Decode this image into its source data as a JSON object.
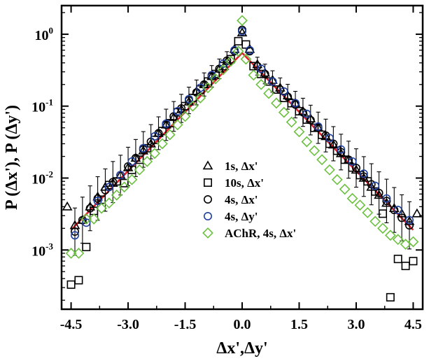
{
  "chart_data": {
    "type": "scatter",
    "x_axis": {
      "label": "Δx',Δy'",
      "range": [
        -4.75,
        4.75
      ],
      "ticks": [
        -4.5,
        -3.0,
        -1.5,
        0.0,
        1.5,
        3.0,
        4.5
      ],
      "tick_labels": [
        "-4.5",
        "-3.0",
        "-1.5",
        "0.0",
        "1.5",
        "3.0",
        "4.5"
      ]
    },
    "y_axis": {
      "label": "P (Δx'), P (Δy')",
      "scale": "log",
      "range": [
        0.00015,
        2.5
      ],
      "ticks": [
        0.001,
        0.01,
        0.1,
        1
      ],
      "tick_labels": [
        {
          "base": "10",
          "exp": "-3"
        },
        {
          "base": "10",
          "exp": "-2"
        },
        {
          "base": "10",
          "exp": "-1"
        },
        {
          "base": "10",
          "exp": "0"
        }
      ]
    },
    "legend": {
      "placement": "right-center",
      "entries": [
        {
          "label": "1s, Δx'",
          "marker": "triangle",
          "color": "#000000"
        },
        {
          "label": "10s, Δx'",
          "marker": "square",
          "color": "#000000"
        },
        {
          "label": "4s, Δx'",
          "marker": "circle",
          "color": "#000000"
        },
        {
          "label": "4s, Δy'",
          "marker": "circle",
          "color": "#2040a0"
        },
        {
          "label": "AChR, 4s, Δx'",
          "marker": "diamond",
          "color": "#6cc040"
        }
      ]
    },
    "fit_line": {
      "color": "#e0202a",
      "points": [
        [
          -4.5,
          0.0019
        ],
        [
          0.0,
          0.55
        ],
        [
          4.5,
          0.0019
        ]
      ]
    },
    "series": [
      {
        "name": "1s, Δx'",
        "marker": "triangle",
        "color": "#000000",
        "x": [
          -4.6,
          -4.4,
          -4.2,
          -4.0,
          -3.8,
          -3.6,
          -3.4,
          -3.2,
          -3.0,
          -2.8,
          -2.6,
          -2.4,
          -2.2,
          -2.0,
          -1.8,
          -1.6,
          -1.4,
          -1.2,
          -1.0,
          -0.8,
          -0.6,
          -0.4,
          -0.2,
          0.0,
          0.2,
          0.4,
          0.6,
          0.8,
          1.0,
          1.2,
          1.4,
          1.6,
          1.8,
          2.0,
          2.2,
          2.4,
          2.6,
          2.8,
          3.0,
          3.2,
          3.4,
          3.6,
          3.8,
          4.0,
          4.2,
          4.4,
          4.6
        ],
        "y": [
          0.004,
          0.0022,
          0.0026,
          0.004,
          0.0055,
          0.0075,
          0.0085,
          0.011,
          0.014,
          0.019,
          0.024,
          0.03,
          0.042,
          0.055,
          0.07,
          0.09,
          0.115,
          0.16,
          0.2,
          0.26,
          0.33,
          0.42,
          0.62,
          1.05,
          0.62,
          0.38,
          0.29,
          0.23,
          0.18,
          0.14,
          0.11,
          0.085,
          0.067,
          0.05,
          0.038,
          0.029,
          0.022,
          0.018,
          0.013,
          0.01,
          0.0075,
          0.0058,
          0.0045,
          0.0038,
          0.0032,
          0.0025,
          0.0032
        ]
      },
      {
        "name": "10s, Δx'",
        "marker": "square",
        "color": "#000000",
        "x": [
          -4.5,
          -4.3,
          -4.1,
          -3.9,
          -3.7,
          -3.5,
          -3.3,
          -3.1,
          -2.9,
          -2.7,
          -2.5,
          -2.3,
          -2.1,
          -1.9,
          -1.7,
          -1.5,
          -1.3,
          -1.1,
          -0.9,
          -0.7,
          -0.5,
          -0.3,
          -0.1,
          0.1,
          0.3,
          0.5,
          0.7,
          0.9,
          1.1,
          1.3,
          1.5,
          1.7,
          1.9,
          2.1,
          2.3,
          2.5,
          2.7,
          2.9,
          3.1,
          3.3,
          3.5,
          3.7,
          3.9,
          4.1,
          4.3,
          4.5
        ],
        "y": [
          0.00033,
          0.00038,
          0.0011,
          0.0035,
          0.005,
          0.008,
          0.009,
          0.0085,
          0.013,
          0.018,
          0.026,
          0.034,
          0.045,
          0.058,
          0.082,
          0.1,
          0.13,
          0.17,
          0.22,
          0.28,
          0.36,
          0.45,
          0.8,
          0.72,
          0.36,
          0.28,
          0.22,
          0.17,
          0.13,
          0.11,
          0.085,
          0.065,
          0.05,
          0.04,
          0.03,
          0.024,
          0.018,
          0.014,
          0.011,
          0.009,
          0.0065,
          0.0032,
          0.00022,
          0.00075,
          0.0006,
          0.0007
        ]
      },
      {
        "name": "4s, Δx'",
        "marker": "circle",
        "color": "#000000",
        "x": [
          -4.4,
          -4.2,
          -4.0,
          -3.8,
          -3.6,
          -3.4,
          -3.2,
          -3.0,
          -2.8,
          -2.6,
          -2.4,
          -2.2,
          -2.0,
          -1.8,
          -1.6,
          -1.4,
          -1.2,
          -1.0,
          -0.8,
          -0.6,
          -0.4,
          -0.2,
          0.0,
          0.2,
          0.4,
          0.6,
          0.8,
          1.0,
          1.2,
          1.4,
          1.6,
          1.8,
          2.0,
          2.2,
          2.4,
          2.6,
          2.8,
          3.0,
          3.2,
          3.4,
          3.6,
          3.8,
          4.0,
          4.2,
          4.4
        ],
        "y": [
          0.0018,
          0.0026,
          0.0038,
          0.0052,
          0.0068,
          0.0088,
          0.011,
          0.0145,
          0.019,
          0.025,
          0.032,
          0.042,
          0.055,
          0.072,
          0.093,
          0.12,
          0.155,
          0.2,
          0.26,
          0.33,
          0.43,
          0.58,
          1.15,
          0.58,
          0.36,
          0.28,
          0.22,
          0.17,
          0.135,
          0.105,
          0.082,
          0.064,
          0.05,
          0.039,
          0.03,
          0.023,
          0.018,
          0.0138,
          0.0105,
          0.0082,
          0.0062,
          0.0048,
          0.0036,
          0.0028,
          0.0022
        ]
      },
      {
        "name": "4s, Δy'",
        "marker": "circle",
        "color": "#2040a0",
        "x": [
          -4.4,
          -4.1,
          -3.8,
          -3.5,
          -3.2,
          -2.9,
          -2.6,
          -2.3,
          -2.0,
          -1.7,
          -1.4,
          -1.1,
          -0.8,
          -0.5,
          -0.2,
          0.0,
          0.2,
          0.5,
          0.8,
          1.1,
          1.4,
          1.7,
          2.0,
          2.3,
          2.6,
          2.9,
          3.2,
          3.5,
          3.8,
          4.1,
          4.4
        ],
        "y": [
          0.0016,
          0.0024,
          0.0048,
          0.0075,
          0.011,
          0.017,
          0.026,
          0.038,
          0.057,
          0.085,
          0.125,
          0.18,
          0.27,
          0.39,
          0.6,
          1.1,
          0.6,
          0.33,
          0.22,
          0.16,
          0.11,
          0.078,
          0.052,
          0.036,
          0.025,
          0.017,
          0.0115,
          0.0078,
          0.0052,
          0.0036,
          0.0026
        ]
      },
      {
        "name": "AChR, 4s, Δx'",
        "marker": "diamond",
        "color": "#6cc040",
        "x": [
          -4.5,
          -4.3,
          -4.1,
          -3.9,
          -3.7,
          -3.5,
          -3.3,
          -3.1,
          -2.9,
          -2.7,
          -2.5,
          -2.3,
          -2.1,
          -1.9,
          -1.7,
          -1.5,
          -1.3,
          -1.1,
          -0.9,
          -0.7,
          -0.5,
          -0.3,
          -0.1,
          0.0,
          0.1,
          0.3,
          0.5,
          0.7,
          0.9,
          1.1,
          1.3,
          1.5,
          1.7,
          1.9,
          2.1,
          2.3,
          2.5,
          2.7,
          2.9,
          3.1,
          3.3,
          3.5,
          3.7,
          3.9,
          4.1,
          4.3,
          4.5
        ],
        "y": [
          0.0009,
          0.0009,
          0.0027,
          0.0027,
          0.0038,
          0.0045,
          0.0058,
          0.0075,
          0.0095,
          0.013,
          0.017,
          0.022,
          0.03,
          0.04,
          0.055,
          0.072,
          0.1,
          0.13,
          0.18,
          0.24,
          0.32,
          0.42,
          0.58,
          1.55,
          0.45,
          0.27,
          0.2,
          0.15,
          0.11,
          0.082,
          0.06,
          0.044,
          0.032,
          0.024,
          0.018,
          0.013,
          0.0095,
          0.007,
          0.0052,
          0.0042,
          0.0033,
          0.0025,
          0.002,
          0.0016,
          0.0014,
          0.0012,
          0.0013
        ]
      }
    ]
  }
}
